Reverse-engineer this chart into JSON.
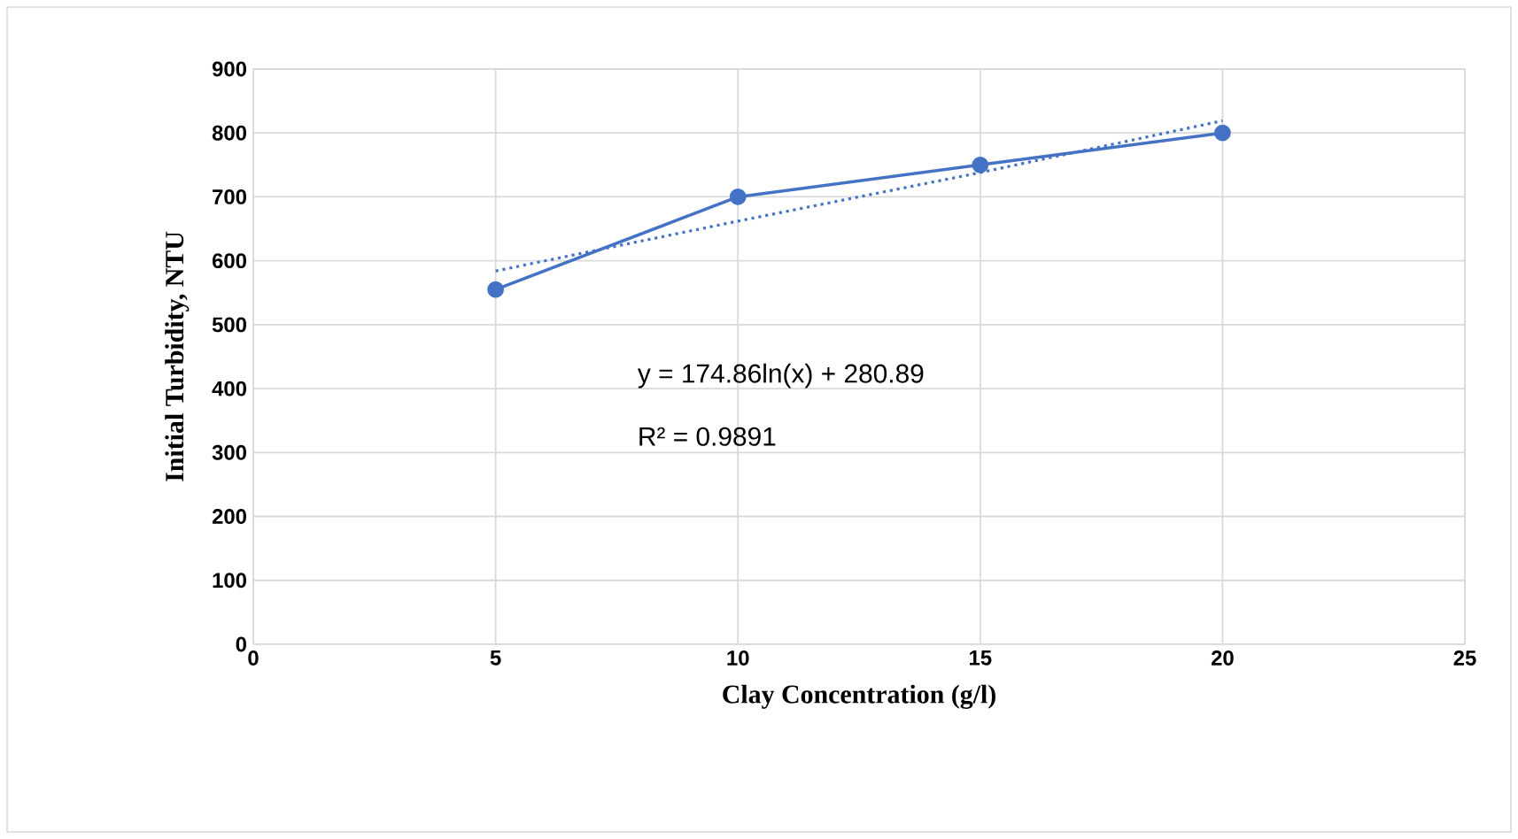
{
  "chart_data": {
    "type": "line",
    "xlabel": "Clay Concentration (g/l)",
    "ylabel": "Initial Turbidity, NTU",
    "series": [
      {
        "color": "#4472c4",
        "x": [
          5,
          10,
          15,
          20
        ],
        "values": [
          555,
          700,
          750,
          800
        ],
        "marker": "circle",
        "line_style": "solid"
      },
      {
        "color": "#4472c4",
        "x": [
          5,
          10,
          15,
          20
        ],
        "values": [
          584,
          662,
          738,
          819
        ],
        "marker": "none",
        "line_style": "dotted"
      }
    ],
    "xlim": [
      0,
      25
    ],
    "xticks": [
      0,
      5,
      10,
      15,
      20,
      25
    ],
    "ylim": [
      0,
      900
    ],
    "yticks": [
      0,
      100,
      200,
      300,
      400,
      500,
      600,
      700,
      800,
      900
    ],
    "grid": true,
    "annotations": [
      "y = 174.86ln(x) + 280.89",
      "R² = 0.9891"
    ]
  }
}
